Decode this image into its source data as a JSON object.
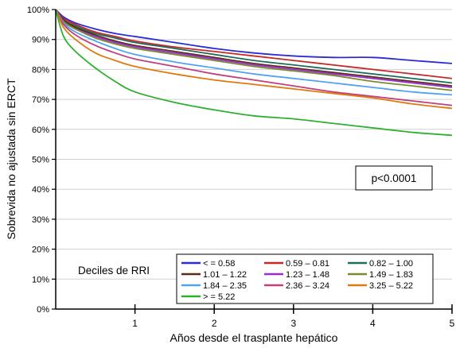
{
  "chart_data": {
    "type": "line",
    "title": "",
    "xlabel": "Años desde el trasplante hepático",
    "ylabel": "Sobrevida no ajustada sin ERCT",
    "xlim": [
      0,
      5
    ],
    "ylim": [
      0,
      100
    ],
    "x_ticks": [
      "1",
      "2",
      "3",
      "4",
      "5"
    ],
    "y_ticks": [
      "0%",
      "10%",
      "20%",
      "30%",
      "40%",
      "50%",
      "60%",
      "70%",
      "80%",
      "90%",
      "100%"
    ],
    "annotation": "p<0.0001",
    "legend_title": "Deciles de RRI",
    "legend_position": "bottom-right",
    "x": [
      0,
      0.1,
      0.25,
      0.5,
      0.75,
      1,
      1.5,
      2,
      2.5,
      3,
      3.5,
      4,
      4.5,
      5
    ],
    "series": [
      {
        "name": "< = 0.58",
        "color": "#2b2bd6",
        "values": [
          100,
          97.5,
          95.5,
          93.5,
          92,
          91,
          89,
          87,
          85.5,
          84.5,
          84,
          84,
          83,
          82
        ]
      },
      {
        "name": "0.59 – 0.81",
        "color": "#c62828",
        "values": [
          100,
          97,
          95,
          92.5,
          91,
          89.5,
          87.5,
          86,
          84.5,
          83,
          81.5,
          80,
          78.5,
          77
        ]
      },
      {
        "name": "0.82 – 1.00",
        "color": "#1f6b5c",
        "values": [
          100,
          96.5,
          94.5,
          92,
          90.5,
          89,
          87,
          85,
          83,
          81.5,
          80,
          78.5,
          77,
          75.5
        ]
      },
      {
        "name": "1.01 – 1.22",
        "color": "#5a2a1a",
        "values": [
          100,
          96.5,
          94,
          91.5,
          89.5,
          88,
          86,
          84,
          82,
          80.5,
          79,
          77.5,
          76,
          74.5
        ]
      },
      {
        "name": "1.23 – 1.48",
        "color": "#9b2bd6",
        "values": [
          100,
          96,
          93.5,
          91,
          89,
          87.5,
          85.5,
          83.5,
          81.5,
          80,
          78.5,
          77,
          75.5,
          74
        ]
      },
      {
        "name": "1.49 – 1.83",
        "color": "#7a8b2b",
        "values": [
          100,
          96,
          93.5,
          90.5,
          88.5,
          87,
          85,
          83,
          81,
          79.5,
          78,
          76,
          74.5,
          73
        ]
      },
      {
        "name": "1.84 – 2.35",
        "color": "#4fa3f0",
        "values": [
          100,
          95.5,
          92.5,
          89.5,
          87,
          85,
          82.5,
          80.5,
          78.5,
          77,
          75.5,
          74,
          72.5,
          71.5
        ]
      },
      {
        "name": "2.36 – 3.24",
        "color": "#c0407a",
        "values": [
          100,
          95,
          91.5,
          88,
          85.5,
          83.5,
          81,
          78.5,
          76.5,
          74.5,
          72.5,
          71,
          69.5,
          68
        ]
      },
      {
        "name": "3.25 – 5.22",
        "color": "#e07a10",
        "values": [
          100,
          94,
          90,
          85.5,
          83,
          81,
          78.5,
          76.5,
          75,
          73.5,
          72,
          70.5,
          68.5,
          67
        ]
      },
      {
        "name": "> = 5.22",
        "color": "#2fb02f",
        "values": [
          100,
          91,
          86,
          80.5,
          76,
          72.5,
          69,
          66.5,
          64.5,
          63.5,
          62,
          60.5,
          59,
          58
        ]
      }
    ]
  }
}
